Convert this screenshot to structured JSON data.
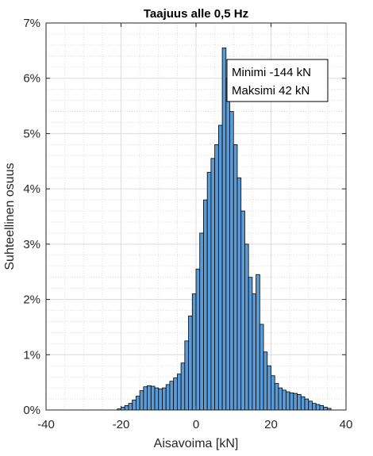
{
  "chart_data": {
    "type": "bar",
    "title": "Taajuus alle 0,5 Hz",
    "xlabel": "Aisavoima [kN]",
    "ylabel": "Suhteellinen osuus",
    "xlim": [
      -40,
      40
    ],
    "ylim": [
      0,
      7
    ],
    "x_ticks": [
      -40,
      -20,
      0,
      20,
      40
    ],
    "x_tick_labels": [
      "-40",
      "-20",
      "0",
      "20",
      "40"
    ],
    "y_ticks": [
      0,
      1,
      2,
      3,
      4,
      5,
      6,
      7
    ],
    "y_tick_labels": [
      "0%",
      "1%",
      "2%",
      "3%",
      "4%",
      "5%",
      "6%",
      "7%"
    ],
    "grid": true,
    "minor_grid": true,
    "bar_color": "#5b9bd5",
    "bin_width": 1,
    "x": [
      -21,
      -20,
      -19,
      -18,
      -17,
      -16,
      -15,
      -14,
      -13,
      -12,
      -11,
      -10,
      -9,
      -8,
      -7,
      -6,
      -5,
      -4,
      -3,
      -2,
      -1,
      0,
      1,
      2,
      3,
      4,
      5,
      6,
      7,
      8,
      9,
      10,
      11,
      12,
      13,
      14,
      15,
      16,
      17,
      18,
      19,
      20,
      21,
      22,
      23,
      24,
      25,
      26,
      27,
      28,
      29,
      30,
      31,
      32,
      33,
      34,
      35
    ],
    "values": [
      0.02,
      0.05,
      0.08,
      0.12,
      0.18,
      0.25,
      0.35,
      0.42,
      0.44,
      0.43,
      0.4,
      0.38,
      0.4,
      0.46,
      0.52,
      0.58,
      0.65,
      0.85,
      1.25,
      1.7,
      2.1,
      2.55,
      3.2,
      3.8,
      4.3,
      4.55,
      4.8,
      5.15,
      6.55,
      6.0,
      5.4,
      4.8,
      4.2,
      3.6,
      3.0,
      2.4,
      2.1,
      2.45,
      1.55,
      1.05,
      0.8,
      0.62,
      0.48,
      0.4,
      0.36,
      0.33,
      0.31,
      0.3,
      0.28,
      0.24,
      0.2,
      0.16,
      0.12,
      0.1,
      0.08,
      0.05,
      0.03
    ],
    "annotations": [
      "Minimi -144 kN",
      "Maksimi 42 kN"
    ]
  }
}
